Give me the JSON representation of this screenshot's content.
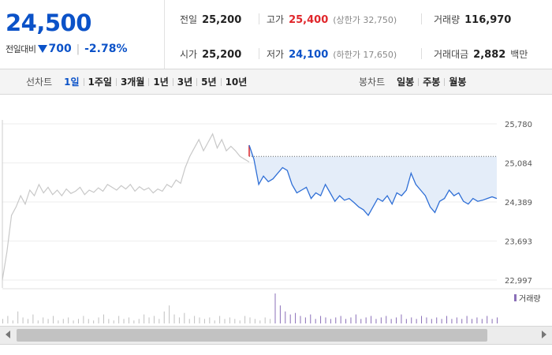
{
  "quote": {
    "price": "24,500",
    "change_label": "전일대비",
    "change_value": "700",
    "change_percent": "-2.78%",
    "colors": {
      "up": "#e0262b",
      "down": "#0b52c8"
    },
    "stats": {
      "prev_close": {
        "label": "전일",
        "value": "25,200"
      },
      "high": {
        "label": "고가",
        "value": "25,400",
        "sub": "(상한가 32,750)"
      },
      "volume": {
        "label": "거래량",
        "value": "116,970"
      },
      "open": {
        "label": "시가",
        "value": "25,200"
      },
      "low": {
        "label": "저가",
        "value": "24,100",
        "sub": "(하한가 17,650)"
      },
      "trade_value": {
        "label": "거래대금",
        "value": "2,882",
        "unit": "백만"
      }
    }
  },
  "toolbar": {
    "line_chart_label": "선차트",
    "line_periods": [
      "1일",
      "1주일",
      "3개월",
      "1년",
      "3년",
      "5년",
      "10년"
    ],
    "active_period": "1일",
    "candle_chart_label": "봉차트",
    "candle_periods": [
      "일봉",
      "주봉",
      "월봉"
    ]
  },
  "chart_data": {
    "type": "line",
    "y_ticks": [
      "25,780",
      "25,084",
      "24,389",
      "23,693",
      "22,997"
    ],
    "ylim": [
      22997,
      25780
    ],
    "reference_price": 25200,
    "volume_legend": "거래량",
    "series": [
      {
        "values": [
          23000,
          23500,
          24150,
          24300,
          24500,
          24350,
          24600,
          24500,
          24700,
          24550,
          24650,
          24520,
          24600,
          24500,
          24620,
          24540,
          24580,
          24650,
          24520,
          24600,
          24560,
          24640,
          24580,
          24700,
          24650,
          24600,
          24680,
          24620,
          24700,
          24580,
          24660,
          24600,
          24640,
          24550,
          24620,
          24580,
          24700,
          24650,
          24780,
          24720,
          25000,
          25200,
          25350,
          25500,
          25300,
          25450,
          25600,
          25350,
          25500,
          25300,
          25380,
          25300,
          25200,
          25150,
          25100
        ]
      },
      {
        "values": [
          25400,
          25150,
          24700,
          24850,
          24750,
          24800,
          24900,
          25000,
          24950,
          24700,
          24550,
          24600,
          24650,
          24450,
          24550,
          24500,
          24700,
          24550,
          24400,
          24500,
          24420,
          24450,
          24380,
          24300,
          24250,
          24150,
          24300,
          24450,
          24400,
          24500,
          24350,
          24550,
          24500,
          24600,
          24900,
          24700,
          24600,
          24500,
          24300,
          24200,
          24400,
          24450,
          24600,
          24500,
          24550,
          24400,
          24350,
          24450,
          24400,
          24420,
          24450,
          24480,
          24450
        ]
      }
    ],
    "volume": [
      3,
      5,
      2,
      8,
      4,
      3,
      6,
      2,
      4,
      3,
      5,
      2,
      3,
      4,
      2,
      3,
      5,
      3,
      2,
      4,
      6,
      3,
      2,
      5,
      3,
      4,
      2,
      3,
      6,
      4,
      5,
      3,
      8,
      12,
      6,
      4,
      7,
      3,
      5,
      4,
      3,
      4,
      2,
      5,
      3,
      4,
      3,
      2,
      5,
      4,
      3,
      2,
      4,
      3,
      20,
      12,
      8,
      6,
      7,
      5,
      4,
      6,
      3,
      5,
      4,
      3,
      4,
      5,
      3,
      4,
      6,
      3,
      4,
      5,
      3,
      4,
      5,
      3,
      4,
      6,
      3,
      4,
      3,
      5,
      4,
      3,
      4,
      3,
      5,
      3,
      4,
      3,
      5,
      3,
      4,
      3,
      5,
      3,
      4
    ]
  },
  "scrollbar": {
    "left_icon": "arrow-left-icon",
    "right_icon": "arrow-right-icon"
  }
}
